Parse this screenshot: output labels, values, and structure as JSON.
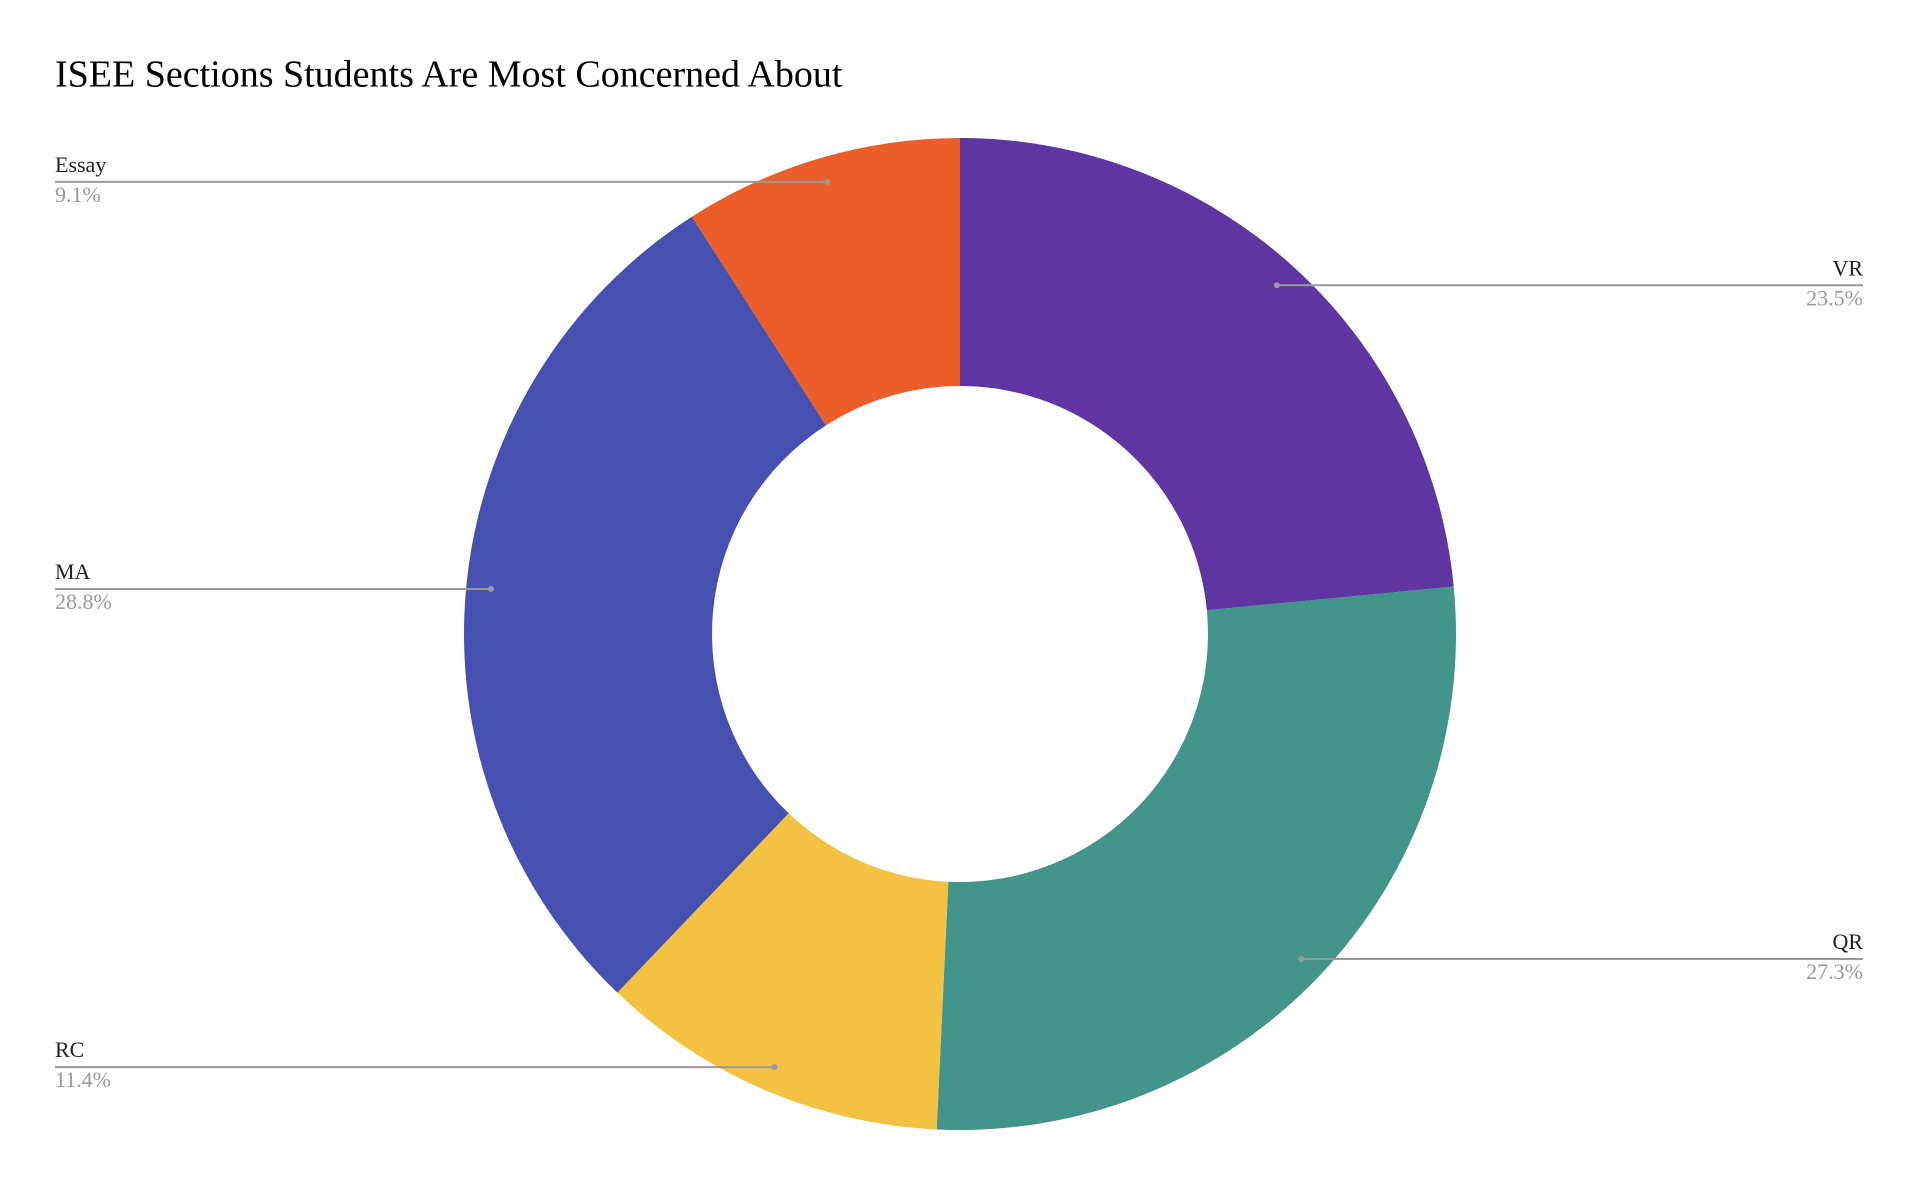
{
  "chart_data": {
    "type": "donut",
    "title": "ISEE Sections Students Are Most Concerned About",
    "categories": [
      "VR",
      "QR",
      "RC",
      "MA",
      "Essay"
    ],
    "values": [
      23.5,
      27.3,
      11.4,
      28.8,
      9.1
    ],
    "value_labels": [
      "23.5%",
      "27.3%",
      "11.4%",
      "28.8%",
      "9.1%"
    ],
    "colors": [
      "#5e35a1",
      "#43948a",
      "#f3c243",
      "#4550b0",
      "#eb5e2b"
    ]
  }
}
